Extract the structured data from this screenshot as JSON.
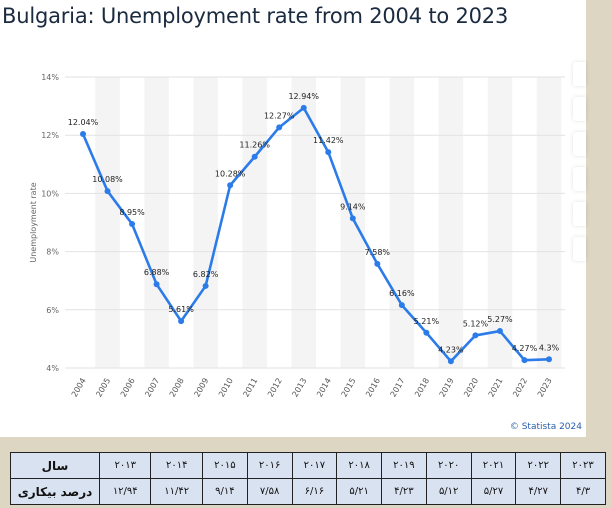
{
  "title": "Bulgaria: Unemployment rate from 2004 to 2023",
  "credit": "© Statista 2024",
  "chart_data": {
    "type": "line",
    "title": "Bulgaria: Unemployment rate from 2004 to 2023",
    "xlabel": "",
    "ylabel": "Unemployment rate",
    "ylim": [
      4,
      14
    ],
    "yticks": [
      "4%",
      "6%",
      "8%",
      "10%",
      "12%",
      "14%"
    ],
    "ytick_values": [
      4,
      6,
      8,
      10,
      12,
      14
    ],
    "x": [
      "2004",
      "2005",
      "2006",
      "2007",
      "2008",
      "2009",
      "2010",
      "2011",
      "2012",
      "2013",
      "2014",
      "2015",
      "2016",
      "2017",
      "2018",
      "2019",
      "2020",
      "2021",
      "2022",
      "2023"
    ],
    "values": [
      12.04,
      10.08,
      8.95,
      6.88,
      5.61,
      6.82,
      10.28,
      11.26,
      12.27,
      12.94,
      11.42,
      9.14,
      7.58,
      6.16,
      5.21,
      4.23,
      5.12,
      5.27,
      4.27,
      4.3
    ],
    "labels": [
      "12.04%",
      "10.08%",
      "8.95%",
      "6.88%",
      "5.61%",
      "6.82%",
      "10.28%",
      "11.26%",
      "12.27%",
      "12.94%",
      "11.42%",
      "9.14%",
      "7.58%",
      "6.16%",
      "5.21%",
      "4.23%",
      "5.12%",
      "5.27%",
      "4.27%",
      "4.3%"
    ],
    "color": "#2b7ce9"
  },
  "table": {
    "row_year_label": "سال",
    "row_rate_label": "درصد بیکاری",
    "years": [
      "۲۰۱۳",
      "۲۰۱۴",
      "۲۰۱۵",
      "۲۰۱۶",
      "۲۰۱۷",
      "۲۰۱۸",
      "۲۰۱۹",
      "۲۰۲۰",
      "۲۰۲۱",
      "۲۰۲۲",
      "۲۰۲۳"
    ],
    "rates": [
      "۱۲/۹۴",
      "۱۱/۴۲",
      "۹/۱۴",
      "۷/۵۸",
      "۶/۱۶",
      "۵/۲۱",
      "۴/۲۳",
      "۵/۱۲",
      "۵/۲۷",
      "۴/۲۷",
      "۴/۳"
    ]
  }
}
